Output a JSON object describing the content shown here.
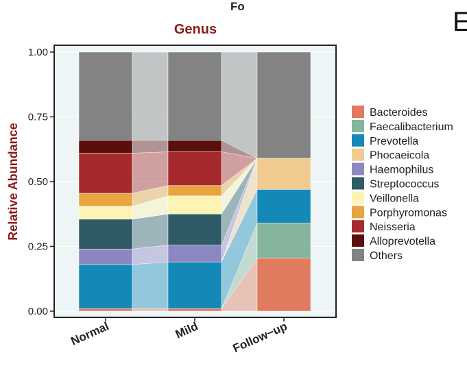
{
  "panel_letter": "E",
  "top_fragment": "Fo",
  "chart_data": {
    "type": "bar",
    "stacked": true,
    "title": "Genus",
    "xlabel": "",
    "ylabel": "Relative Abundance",
    "ylim": [
      0,
      1
    ],
    "yticks": [
      "0.00",
      "0.25",
      "0.50",
      "0.75",
      "1.00"
    ],
    "ytick_values": [
      0,
      0.25,
      0.5,
      0.75,
      1.0
    ],
    "categories": [
      "Normal",
      "Mild",
      "Follow−up"
    ],
    "legend_position": "right",
    "series": [
      {
        "name": "Bacteroides",
        "color": "#E07B5F",
        "values": [
          0.01,
          0.01,
          0.205
        ]
      },
      {
        "name": "Faecalibacterium",
        "color": "#85B59D",
        "values": [
          0.0,
          0.0,
          0.135
        ]
      },
      {
        "name": "Prevotella",
        "color": "#1489B8",
        "values": [
          0.17,
          0.18,
          0.13
        ]
      },
      {
        "name": "Phocaeicola",
        "color": "#F1CB8F",
        "values": [
          0.0,
          0.0,
          0.12
        ]
      },
      {
        "name": "Haemophilus",
        "color": "#8C86C2",
        "values": [
          0.06,
          0.065,
          0.0
        ]
      },
      {
        "name": "Streptococcus",
        "color": "#2E5B66",
        "values": [
          0.115,
          0.12,
          0.0
        ]
      },
      {
        "name": "Veillonella",
        "color": "#FDF3B4",
        "values": [
          0.05,
          0.07,
          0.0
        ]
      },
      {
        "name": "Porphyromonas",
        "color": "#E8A440",
        "values": [
          0.05,
          0.04,
          0.0
        ]
      },
      {
        "name": "Neisseria",
        "color": "#A62A2C",
        "values": [
          0.155,
          0.13,
          0.0
        ]
      },
      {
        "name": "Alloprevotella",
        "color": "#5A0F0D",
        "values": [
          0.05,
          0.045,
          0.0
        ]
      },
      {
        "name": "Others",
        "color": "#838383",
        "values": [
          0.34,
          0.34,
          0.41
        ]
      }
    ]
  },
  "colors": {
    "title": "#8B1A1A",
    "panel_bg": "#EEF5F6",
    "grid": "#FFFFFF",
    "frame": "#222222"
  }
}
